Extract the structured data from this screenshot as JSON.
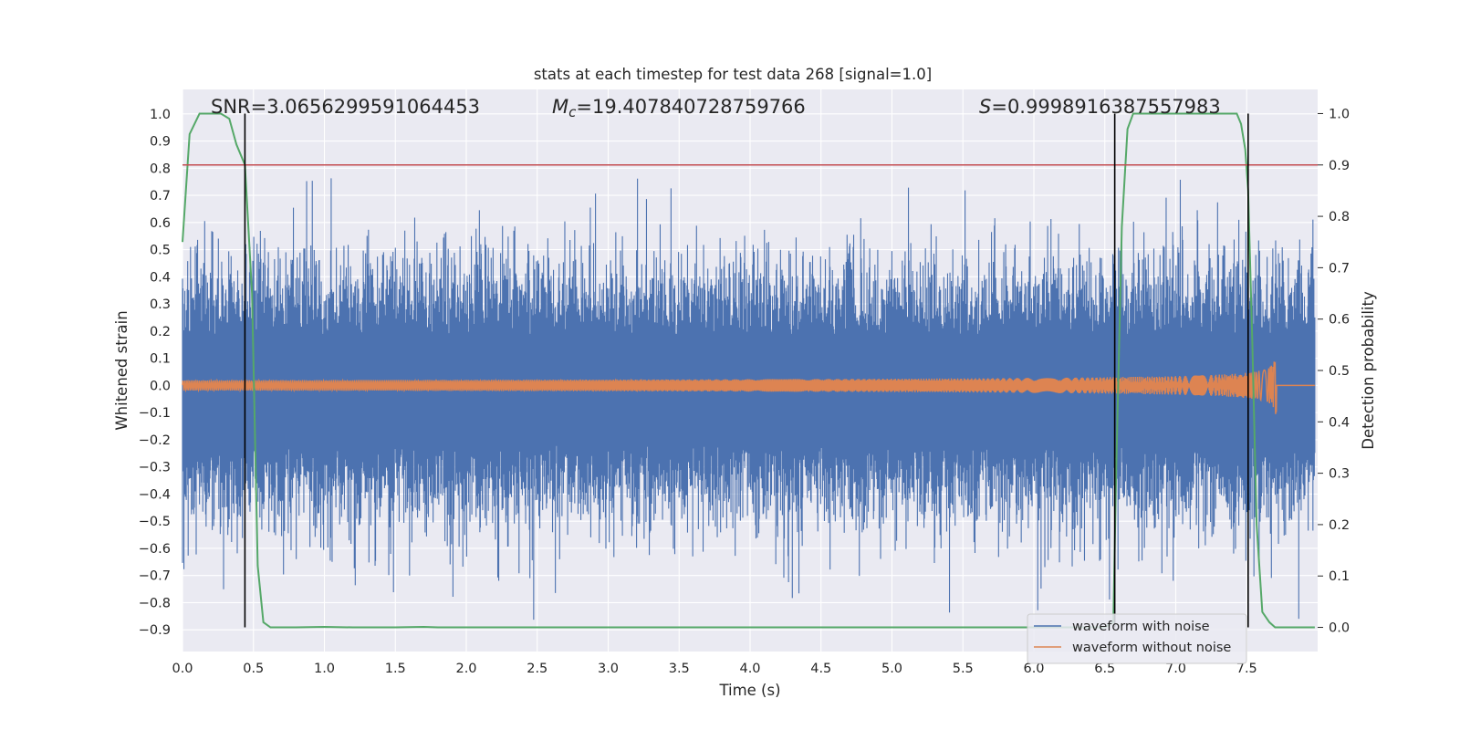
{
  "chart_data": {
    "type": "line",
    "title": "stats at each timestep for test data 268 [signal=1.0]",
    "xlabel": "Time (s)",
    "ylabel": "Whitened strain",
    "ylabel_right": "Detection probability",
    "xlim": [
      0.0,
      8.0
    ],
    "ylim": [
      -0.98,
      1.09
    ],
    "ylim_right": [
      -0.047,
      1.047
    ],
    "x_ticks": [
      0.0,
      0.5,
      1.0,
      1.5,
      2.0,
      2.5,
      3.0,
      3.5,
      4.0,
      4.5,
      5.0,
      5.5,
      6.0,
      6.5,
      7.0,
      7.5
    ],
    "x_tick_labels": [
      "0.0",
      "0.5",
      "1.0",
      "1.5",
      "2.0",
      "2.5",
      "3.0",
      "3.5",
      "4.0",
      "4.5",
      "5.0",
      "5.5",
      "6.0",
      "6.5",
      "7.0",
      "7.5"
    ],
    "y_ticks": [
      1.0,
      0.9,
      0.8,
      0.7,
      0.6,
      0.5,
      0.4,
      0.3,
      0.2,
      0.1,
      0.0,
      -0.1,
      -0.2,
      -0.3,
      -0.4,
      -0.5,
      -0.6,
      -0.7,
      -0.8,
      -0.9
    ],
    "y_tick_labels": [
      "1.0",
      "0.9",
      "0.8",
      "0.7",
      "0.6",
      "0.5",
      "0.4",
      "0.3",
      "0.2",
      "0.1",
      "0.0",
      "−0.1",
      "−0.2",
      "−0.3",
      "−0.4",
      "−0.5",
      "−0.6",
      "−0.7",
      "−0.8",
      "−0.9"
    ],
    "y_ticks_right": [
      1.0,
      0.9,
      0.8,
      0.7,
      0.6,
      0.5,
      0.4,
      0.3,
      0.2,
      0.1,
      0.0
    ],
    "y_tick_labels_right": [
      "1.0",
      "0.9",
      "0.8",
      "0.7",
      "0.6",
      "0.5",
      "0.4",
      "0.3",
      "0.2",
      "0.1",
      "0.0"
    ],
    "grid": true,
    "legend_position": "lower-right",
    "annotations": {
      "snr": "SNR=3.0656299591064453",
      "mc_symbol": "M",
      "mc_subscript": "c",
      "mc_value": "=19.407840728759766",
      "s_symbol": "S",
      "s_value": "=0.9998916387557983"
    },
    "threshold_right": 0.9,
    "vertical_lines_x": [
      0.44,
      6.57,
      7.51
    ],
    "colors": {
      "noise": "#4c72b0",
      "clean": "#dd8452",
      "probability": "#55a868",
      "threshold": "#c44e52",
      "event": "#000000",
      "background": "#eaeaf2",
      "grid": "#ffffff"
    },
    "series": [
      {
        "name": "waveform with noise",
        "axis": "left",
        "description_range": [
          -0.98,
          0.94
        ]
      },
      {
        "name": "waveform without noise",
        "axis": "left",
        "chirp_peak_time": 7.71,
        "chirp_peak_amplitude": 0.14
      },
      {
        "axis": "right",
        "x": [
          0.0,
          0.05,
          0.12,
          0.2,
          0.27,
          0.33,
          0.38,
          0.44,
          0.49,
          0.53,
          0.57,
          0.62,
          0.8,
          1.0,
          1.2,
          1.5,
          1.7,
          1.8,
          2.0,
          3.0,
          4.0,
          5.0,
          6.0,
          6.5,
          6.56,
          6.58,
          6.62,
          6.66,
          6.7,
          6.75,
          6.85,
          7.0,
          7.2,
          7.35,
          7.43,
          7.46,
          7.49,
          7.51,
          7.54,
          7.57,
          7.61,
          7.66,
          7.7,
          7.8,
          7.92,
          7.98
        ],
        "values": [
          0.75,
          0.96,
          1.0,
          1.0,
          1.0,
          0.99,
          0.94,
          0.9,
          0.65,
          0.12,
          0.01,
          0.0,
          0.0,
          0.001,
          0.0,
          0.0,
          0.001,
          0.0,
          0.0,
          0.0,
          0.0,
          0.0,
          0.0,
          0.0,
          0.01,
          0.3,
          0.78,
          0.97,
          1.0,
          1.0,
          1.0,
          1.0,
          1.0,
          1.0,
          1.0,
          0.98,
          0.93,
          0.85,
          0.55,
          0.2,
          0.03,
          0.01,
          0.0,
          0.0,
          0.0,
          0.0
        ]
      }
    ]
  }
}
